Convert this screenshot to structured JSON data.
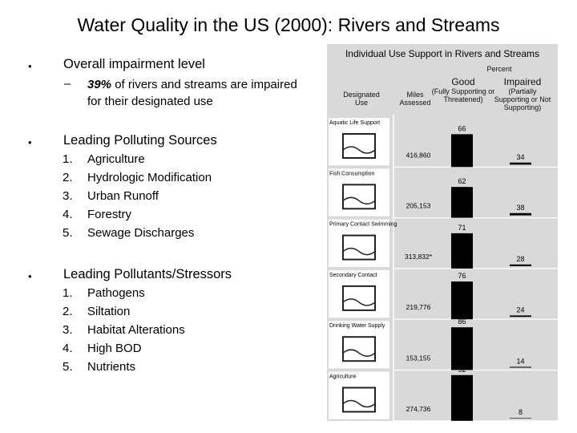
{
  "title": "Water Quality in the US (2000): Rivers and Streams",
  "outline": {
    "impairment": {
      "heading": "Overall impairment level",
      "dash": "–",
      "percent": "39%",
      "text": " of rivers and streams are impaired for their designated use"
    },
    "sources": {
      "heading": "Leading Polluting Sources",
      "items": [
        "Agriculture",
        "Hydrologic Modification",
        "Urban Runoff",
        "Forestry",
        "Sewage Discharges"
      ]
    },
    "pollutants": {
      "heading": "Leading Pollutants/Stressors",
      "items": [
        "Pathogens",
        "Siltation",
        "Habitat Alterations",
        "High BOD",
        "Nutrients"
      ]
    }
  },
  "figure": {
    "title": "Individual Use Support in Rivers and Streams",
    "header": {
      "percent": "Percent",
      "designated_use": "Designated Use",
      "miles_assessed": "Miles Assessed",
      "good": "Good",
      "good_sub": "(Fully Supporting or Threatened)",
      "impaired": "Impaired",
      "impaired_sub": "(Partially Supporting or Not Supporting)"
    }
  },
  "chart_data": {
    "type": "bar",
    "title": "Individual Use Support in Rivers and Streams",
    "categories": [
      "Aquatic Life Support",
      "Fish Consumption",
      "Primary Contact Swimming",
      "Secondary Contact",
      "Drinking Water Supply",
      "Agriculture"
    ],
    "miles_assessed": [
      "416,860",
      "205,153",
      "313,832*",
      "219,776",
      "153,155",
      "274,736"
    ],
    "series": [
      {
        "name": "Good (Fully Supporting or Threatened)",
        "values": [
          66,
          62,
          71,
          76,
          86,
          92
        ]
      },
      {
        "name": "Impaired (Partially Supporting or Not Supporting)",
        "values": [
          34,
          38,
          28,
          24,
          14,
          8
        ]
      }
    ],
    "ylim": [
      0,
      100
    ]
  },
  "colors": {
    "figure_bg": "#d9d9d9",
    "bar": "#000000"
  }
}
